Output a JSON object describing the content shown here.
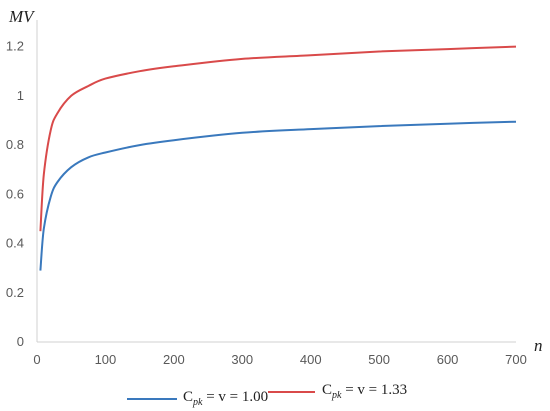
{
  "chart_data": {
    "type": "line",
    "xlabel": "n",
    "ylabel": "MV",
    "xlim": [
      0,
      700
    ],
    "ylim": [
      0,
      1.3
    ],
    "x_ticks": [
      "0",
      "100",
      "200",
      "300",
      "400",
      "500",
      "600",
      "700"
    ],
    "y_ticks": [
      "0",
      "0.2",
      "0.4",
      "0.6",
      "0.8",
      "1",
      "1.2"
    ],
    "grid": false,
    "legend_position": "bottom",
    "x": [
      5,
      10,
      20,
      30,
      50,
      75,
      100,
      150,
      200,
      300,
      400,
      500,
      600,
      700
    ],
    "series": [
      {
        "label_main": "C",
        "label_sub": "pk",
        "label_rest": " = v = 1.00",
        "color": "#3A79BD",
        "values": [
          0.29,
          0.46,
          0.59,
          0.65,
          0.71,
          0.75,
          0.77,
          0.8,
          0.82,
          0.85,
          0.865,
          0.877,
          0.887,
          0.895
        ]
      },
      {
        "label_main": "C",
        "label_sub": "pk",
        "label_rest": " = v = 1.33",
        "color": "#D94A4A",
        "values": [
          0.45,
          0.68,
          0.86,
          0.93,
          1.0,
          1.04,
          1.07,
          1.1,
          1.12,
          1.15,
          1.165,
          1.18,
          1.19,
          1.2
        ]
      }
    ]
  }
}
